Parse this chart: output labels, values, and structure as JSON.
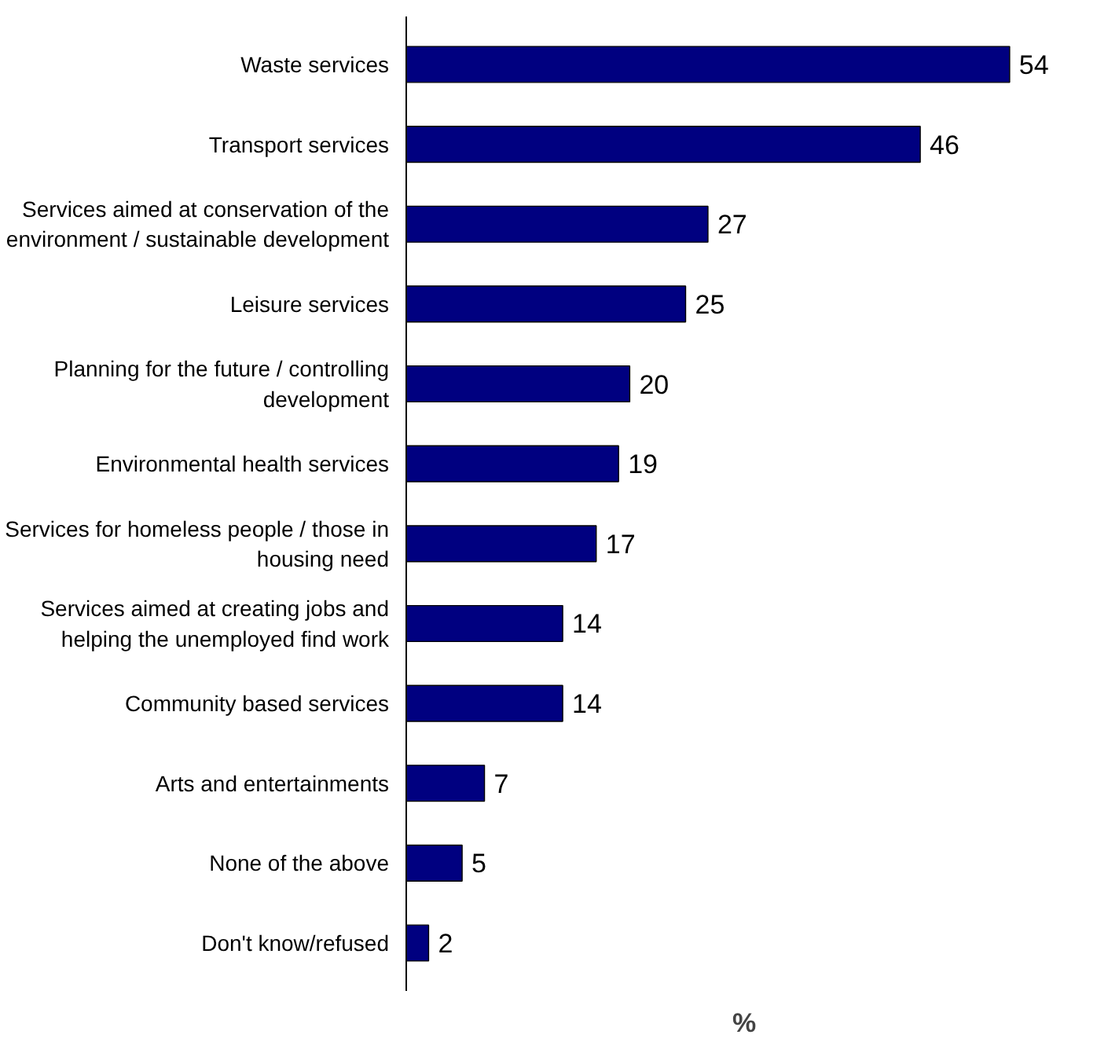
{
  "chart_data": {
    "type": "bar",
    "orientation": "horizontal",
    "xlabel": "%",
    "data_labels": true,
    "color": "#000080",
    "categories": [
      "Waste services",
      "Transport services",
      "Services aimed at conservation of the environment / sustainable development",
      "Leisure services",
      "Planning for the future / controlling development",
      "Environmental health services",
      "Services for homeless people / those in housing need",
      "Services aimed at creating jobs and helping the unemployed find work",
      "Community based services",
      "Arts and entertainments",
      "None of the above",
      "Don't know/refused"
    ],
    "values": [
      54,
      46,
      27,
      25,
      20,
      19,
      17,
      14,
      14,
      7,
      5,
      2
    ]
  }
}
